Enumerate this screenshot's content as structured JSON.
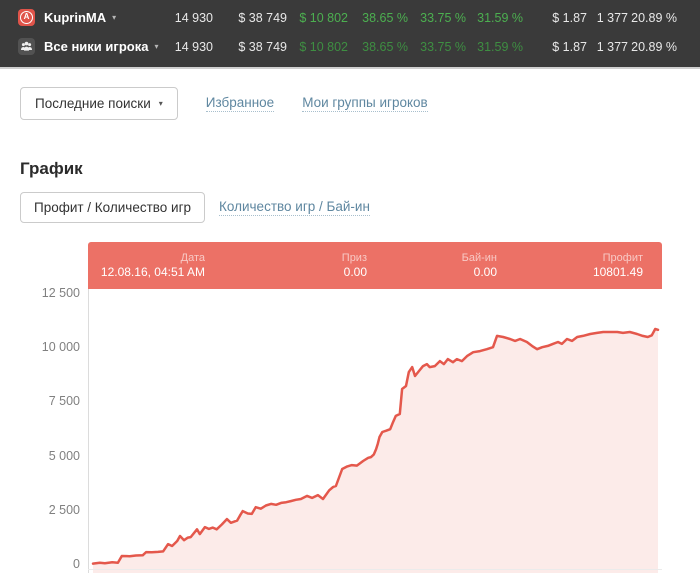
{
  "icons": {
    "dropdown_caret": "▾",
    "player_avatar": "letter-A-badge",
    "group_avatar": "people-group"
  },
  "colors": {
    "header_bg": "#3a3a3a",
    "green": "#4caf50",
    "green_dim": "#3e8e42",
    "link": "#5f87a0",
    "line": "#e4584c",
    "fill": "#fcebe9",
    "tooltip_bg": "#ec7166"
  },
  "header": {
    "rows": [
      {
        "name": "KuprinMA",
        "icon_letter": "A",
        "stats": [
          "14 930",
          "$ 38 749",
          "$ 10 802",
          "38.65 %",
          "33.75 %",
          "31.59 %",
          "$ 1.87",
          "1 377",
          "20.89 %"
        ]
      },
      {
        "name": "Все ники игрока",
        "stats": [
          "14 930",
          "$ 38 749",
          "$ 10 802",
          "38.65 %",
          "33.75 %",
          "31.59 %",
          "$ 1.87",
          "1 377",
          "20.89 %"
        ]
      }
    ]
  },
  "toolbar": {
    "recent_searches": "Последние поиски",
    "favorites": "Избранное",
    "my_groups": "Мои группы игроков"
  },
  "chart_section": {
    "title": "График",
    "tabs": [
      "Профит / Количество игр",
      "Количество игр / Бай-ин"
    ]
  },
  "chart_data": {
    "type": "area",
    "title": "Профит / Количество игр",
    "ylabel": "",
    "xlabel": "",
    "ylim": [
      0,
      12500
    ],
    "yticks": [
      "12 500",
      "10 000",
      "7 500",
      "5 000",
      "2 500",
      "0"
    ],
    "grid": "off",
    "legend": "none",
    "tooltip": {
      "cols": [
        {
          "label": "Дата",
          "value": "12.08.16, 04:51 AM"
        },
        {
          "label": "Приз",
          "value": "0.00"
        },
        {
          "label": "Бай-ин",
          "value": "0.00"
        },
        {
          "label": "Профит",
          "value": "10801.49"
        }
      ]
    },
    "points": [
      [
        0.0,
        20
      ],
      [
        0.012,
        60
      ],
      [
        0.021,
        30
      ],
      [
        0.034,
        80
      ],
      [
        0.044,
        60
      ],
      [
        0.051,
        370
      ],
      [
        0.065,
        360
      ],
      [
        0.076,
        390
      ],
      [
        0.088,
        400
      ],
      [
        0.094,
        550
      ],
      [
        0.104,
        540
      ],
      [
        0.115,
        560
      ],
      [
        0.124,
        580
      ],
      [
        0.133,
        920
      ],
      [
        0.14,
        830
      ],
      [
        0.149,
        1060
      ],
      [
        0.154,
        1290
      ],
      [
        0.161,
        1100
      ],
      [
        0.168,
        1220
      ],
      [
        0.173,
        1240
      ],
      [
        0.184,
        1600
      ],
      [
        0.189,
        1380
      ],
      [
        0.198,
        1700
      ],
      [
        0.205,
        1620
      ],
      [
        0.212,
        1680
      ],
      [
        0.219,
        1600
      ],
      [
        0.228,
        1820
      ],
      [
        0.237,
        2070
      ],
      [
        0.244,
        1900
      ],
      [
        0.255,
        2000
      ],
      [
        0.26,
        2230
      ],
      [
        0.265,
        2440
      ],
      [
        0.274,
        2330
      ],
      [
        0.281,
        2310
      ],
      [
        0.288,
        2620
      ],
      [
        0.297,
        2550
      ],
      [
        0.306,
        2700
      ],
      [
        0.315,
        2770
      ],
      [
        0.324,
        2730
      ],
      [
        0.333,
        2820
      ],
      [
        0.342,
        2850
      ],
      [
        0.35,
        2900
      ],
      [
        0.359,
        2960
      ],
      [
        0.368,
        3000
      ],
      [
        0.379,
        3140
      ],
      [
        0.388,
        3050
      ],
      [
        0.398,
        3180
      ],
      [
        0.407,
        3000
      ],
      [
        0.418,
        3400
      ],
      [
        0.425,
        3550
      ],
      [
        0.43,
        3600
      ],
      [
        0.441,
        4380
      ],
      [
        0.45,
        4500
      ],
      [
        0.458,
        4560
      ],
      [
        0.467,
        4540
      ],
      [
        0.478,
        4750
      ],
      [
        0.487,
        4900
      ],
      [
        0.492,
        4930
      ],
      [
        0.497,
        5050
      ],
      [
        0.501,
        5300
      ],
      [
        0.504,
        5550
      ],
      [
        0.507,
        5860
      ],
      [
        0.512,
        6090
      ],
      [
        0.519,
        6150
      ],
      [
        0.526,
        6220
      ],
      [
        0.531,
        6540
      ],
      [
        0.536,
        6830
      ],
      [
        0.543,
        6920
      ],
      [
        0.547,
        8070
      ],
      [
        0.554,
        8210
      ],
      [
        0.559,
        8850
      ],
      [
        0.565,
        9080
      ],
      [
        0.57,
        8670
      ],
      [
        0.577,
        8900
      ],
      [
        0.584,
        9130
      ],
      [
        0.591,
        9220
      ],
      [
        0.596,
        9080
      ],
      [
        0.605,
        9130
      ],
      [
        0.614,
        9360
      ],
      [
        0.621,
        9220
      ],
      [
        0.628,
        9450
      ],
      [
        0.637,
        9310
      ],
      [
        0.644,
        9450
      ],
      [
        0.653,
        9360
      ],
      [
        0.662,
        9590
      ],
      [
        0.673,
        9770
      ],
      [
        0.685,
        9820
      ],
      [
        0.697,
        9910
      ],
      [
        0.708,
        10000
      ],
      [
        0.715,
        10520
      ],
      [
        0.726,
        10470
      ],
      [
        0.738,
        10380
      ],
      [
        0.747,
        10290
      ],
      [
        0.756,
        10380
      ],
      [
        0.768,
        10240
      ],
      [
        0.777,
        10060
      ],
      [
        0.786,
        9910
      ],
      [
        0.795,
        10000
      ],
      [
        0.805,
        10060
      ],
      [
        0.814,
        10150
      ],
      [
        0.823,
        10240
      ],
      [
        0.83,
        10150
      ],
      [
        0.839,
        10380
      ],
      [
        0.848,
        10290
      ],
      [
        0.857,
        10470
      ],
      [
        0.867,
        10520
      ],
      [
        0.88,
        10610
      ],
      [
        0.892,
        10660
      ],
      [
        0.903,
        10700
      ],
      [
        0.915,
        10700
      ],
      [
        0.928,
        10700
      ],
      [
        0.938,
        10660
      ],
      [
        0.95,
        10700
      ],
      [
        0.963,
        10610
      ],
      [
        0.973,
        10520
      ],
      [
        0.982,
        10470
      ],
      [
        0.989,
        10550
      ],
      [
        0.995,
        10840
      ],
      [
        1.0,
        10801
      ]
    ]
  }
}
